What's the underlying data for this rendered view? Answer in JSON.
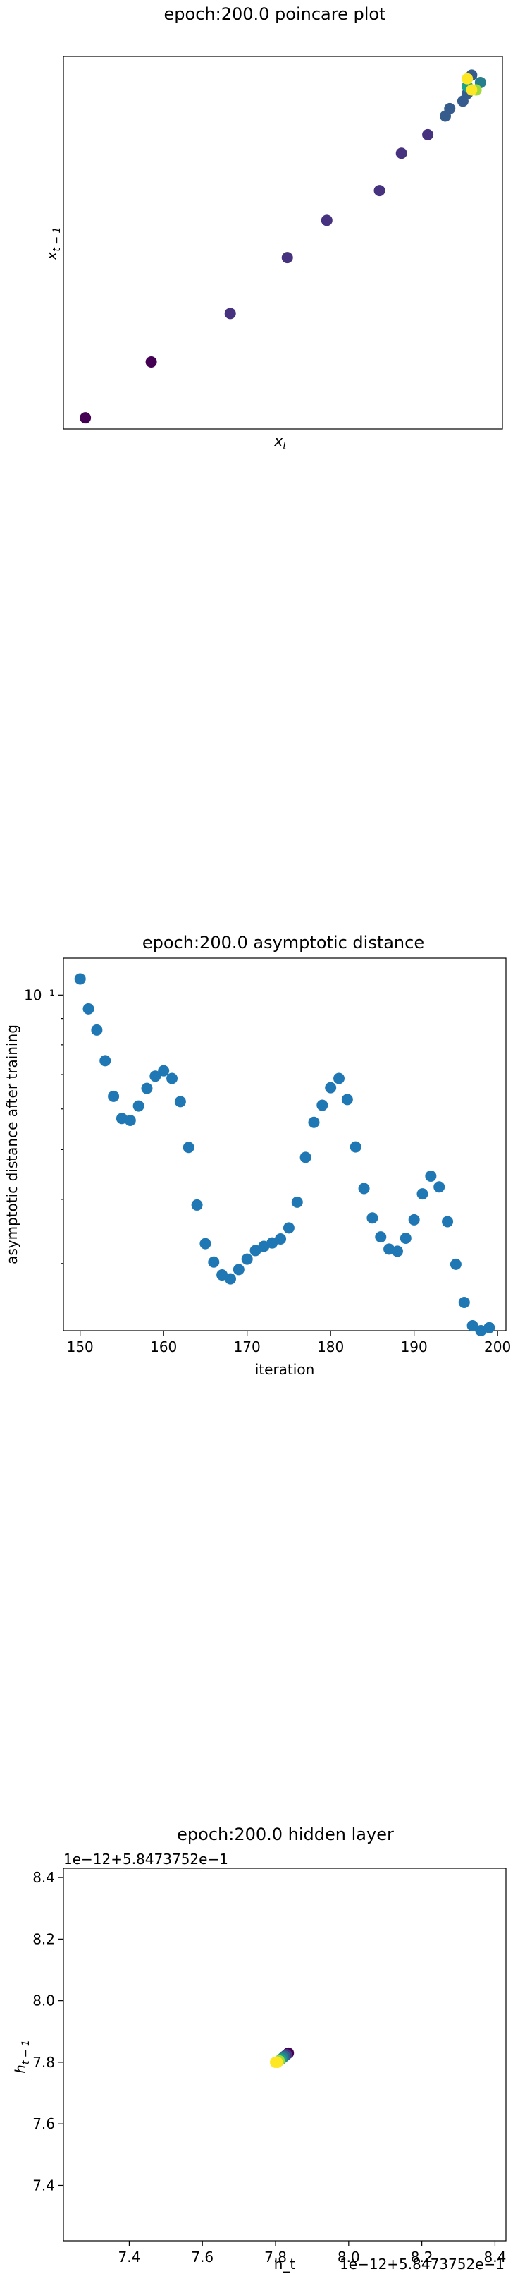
{
  "colors": {
    "blue": "#1f77b4",
    "viridis": [
      "#440154",
      "#46327e",
      "#365c8d",
      "#277f8e",
      "#1fa187",
      "#4ac16d",
      "#a0da39",
      "#fde725"
    ]
  },
  "chart_data": [
    {
      "type": "scatter",
      "title": "epoch:200.0 poincare plot",
      "xlabel": "x_t",
      "ylabel": "x_{t-1}",
      "ticks_visible": false,
      "grid": false,
      "color_scale": "viridis",
      "xlim": [
        0,
        1
      ],
      "ylim": [
        0,
        1
      ],
      "points": [
        {
          "x": 0.05,
          "y": 0.03,
          "c": 0.0
        },
        {
          "x": 0.2,
          "y": 0.18,
          "c": 0.05
        },
        {
          "x": 0.38,
          "y": 0.31,
          "c": 0.08
        },
        {
          "x": 0.51,
          "y": 0.46,
          "c": 0.1
        },
        {
          "x": 0.6,
          "y": 0.56,
          "c": 0.12
        },
        {
          "x": 0.72,
          "y": 0.64,
          "c": 0.14
        },
        {
          "x": 0.77,
          "y": 0.74,
          "c": 0.18
        },
        {
          "x": 0.83,
          "y": 0.79,
          "c": 0.2
        },
        {
          "x": 0.87,
          "y": 0.84,
          "c": 0.22
        },
        {
          "x": 0.88,
          "y": 0.86,
          "c": 0.24
        },
        {
          "x": 0.91,
          "y": 0.88,
          "c": 0.26
        },
        {
          "x": 0.92,
          "y": 0.9,
          "c": 0.35
        },
        {
          "x": 0.93,
          "y": 0.95,
          "c": 0.3
        },
        {
          "x": 0.95,
          "y": 0.93,
          "c": 0.4
        },
        {
          "x": 0.92,
          "y": 0.92,
          "c": 0.6
        },
        {
          "x": 0.94,
          "y": 0.91,
          "c": 0.8
        },
        {
          "x": 0.92,
          "y": 0.94,
          "c": 0.95
        },
        {
          "x": 0.93,
          "y": 0.91,
          "c": 1.0
        }
      ]
    },
    {
      "type": "scatter",
      "title": "epoch:200.0 asymptotic distance",
      "xlabel": "iteration",
      "ylabel": "asymptotic distance after training",
      "yscale": "log",
      "xlim": [
        148,
        201
      ],
      "ylim": [
        0.0222,
        0.118
      ],
      "xticks": [
        150,
        160,
        170,
        180,
        190,
        200
      ],
      "yticks": [
        {
          "value": 0.1,
          "label": "10⁻¹"
        }
      ],
      "grid": false,
      "x": [
        150,
        151,
        152,
        153,
        154,
        155,
        156,
        157,
        158,
        159,
        160,
        161,
        162,
        163,
        164,
        165,
        166,
        167,
        168,
        169,
        170,
        171,
        172,
        173,
        174,
        175,
        176,
        177,
        178,
        179,
        180,
        181,
        182,
        183,
        184,
        185,
        186,
        187,
        188,
        189,
        190,
        191,
        192,
        193,
        194,
        195,
        196,
        197,
        198,
        199
      ],
      "y": [
        0.1075,
        0.094,
        0.0855,
        0.0745,
        0.0635,
        0.0575,
        0.057,
        0.0608,
        0.0658,
        0.0695,
        0.0712,
        0.0688,
        0.062,
        0.0505,
        0.039,
        0.0328,
        0.0302,
        0.0285,
        0.028,
        0.0292,
        0.0306,
        0.0318,
        0.0324,
        0.0329,
        0.0335,
        0.0352,
        0.0395,
        0.0483,
        0.0565,
        0.061,
        0.066,
        0.0688,
        0.0626,
        0.0506,
        0.042,
        0.0368,
        0.0338,
        0.032,
        0.0317,
        0.0336,
        0.0365,
        0.041,
        0.0444,
        0.0423,
        0.0362,
        0.0299,
        0.0252,
        0.0227,
        0.0222,
        0.0225
      ]
    },
    {
      "type": "scatter",
      "title": "epoch:200.0 hidden layer",
      "xlabel": "h_t",
      "ylabel": "h_{t-1}",
      "x_offset_label": "1e−12+5.8473752e−1",
      "y_offset_label": "1e−12+5.8473752e−1",
      "xlim": [
        7.22,
        8.43
      ],
      "ylim": [
        7.22,
        8.43
      ],
      "xticks": [
        7.4,
        7.6,
        7.8,
        8.0,
        8.2,
        8.4
      ],
      "yticks": [
        7.4,
        7.6,
        7.8,
        8.0,
        8.2,
        8.4
      ],
      "grid": false,
      "color_scale": "viridis",
      "points": [
        {
          "x": 7.805,
          "y": 7.8,
          "c": 1.0
        },
        {
          "x": 7.81,
          "y": 7.805,
          "c": 0.85
        },
        {
          "x": 7.815,
          "y": 7.81,
          "c": 0.6
        },
        {
          "x": 7.82,
          "y": 7.815,
          "c": 0.4
        },
        {
          "x": 7.825,
          "y": 7.82,
          "c": 0.25
        },
        {
          "x": 7.83,
          "y": 7.825,
          "c": 0.1
        },
        {
          "x": 7.835,
          "y": 7.83,
          "c": 0.0
        },
        {
          "x": 7.8,
          "y": 7.8,
          "c": 0.95
        },
        {
          "x": 7.803,
          "y": 7.801,
          "c": 1.0
        }
      ]
    }
  ]
}
